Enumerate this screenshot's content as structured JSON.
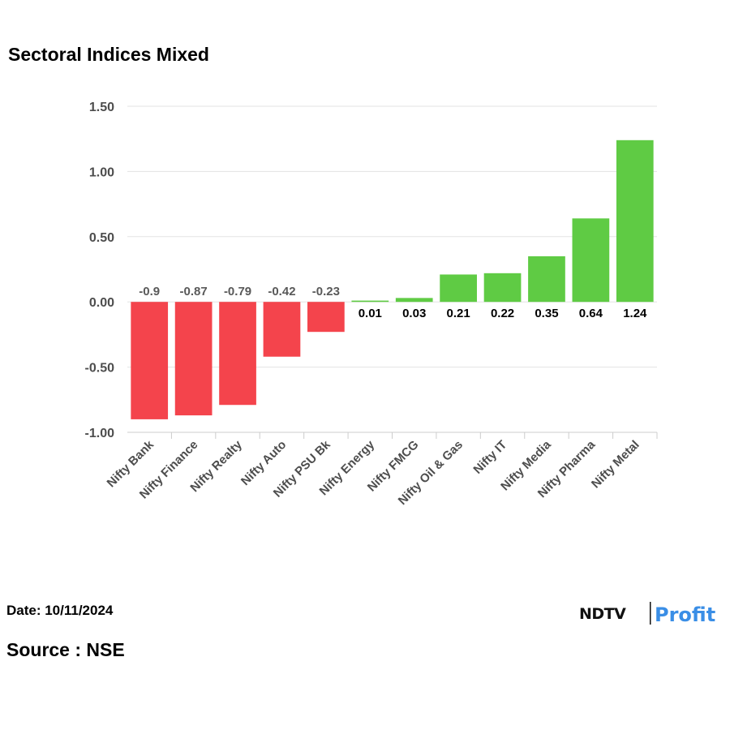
{
  "chart_data": {
    "type": "bar",
    "title": "Sectoral Indices Mixed",
    "xlabel": "",
    "ylabel": "",
    "ylim": [
      -1.0,
      1.5
    ],
    "yticks": [
      "1.50",
      "1.00",
      "0.50",
      "0.00",
      "-0.50",
      "-1.00"
    ],
    "ytick_values": [
      1.5,
      1.0,
      0.5,
      0.0,
      -0.5,
      -1.0
    ],
    "categories": [
      "Nifty Bank",
      "Nifty Finance",
      "Nifty Realty",
      "Nifty Auto",
      "Nifty PSU Bk",
      "Nifty Energy",
      "Nifty FMCG",
      "Nifty Oil & Gas",
      "Nifty IT",
      "Nifty Media",
      "Nifty Pharma",
      "Nifty Metal"
    ],
    "values": [
      -0.9,
      -0.87,
      -0.79,
      -0.42,
      -0.23,
      0.01,
      0.03,
      0.21,
      0.22,
      0.35,
      0.64,
      1.24
    ],
    "value_labels": [
      "-0.9",
      "-0.87",
      "-0.79",
      "-0.42",
      "-0.23",
      "0.01",
      "0.03",
      "0.21",
      "0.22",
      "0.35",
      "0.64",
      "1.24"
    ],
    "grid": true,
    "legend": "none",
    "colors": {
      "positive": "#5fcb44",
      "negative": "#f4444c",
      "grid": "#e3e3e3",
      "tick_text": "#4d4d4d",
      "neg_label": "#595959",
      "pos_label": "#000000"
    }
  },
  "footer": {
    "date": "Date: 10/11/2024",
    "source": "Source : NSE"
  },
  "logo": {
    "ndtv": "NDTV",
    "profit": "Profit",
    "ndtv_color": "#111111",
    "profit_color": "#3a8ee6",
    "accent_color": "#e6337a"
  }
}
